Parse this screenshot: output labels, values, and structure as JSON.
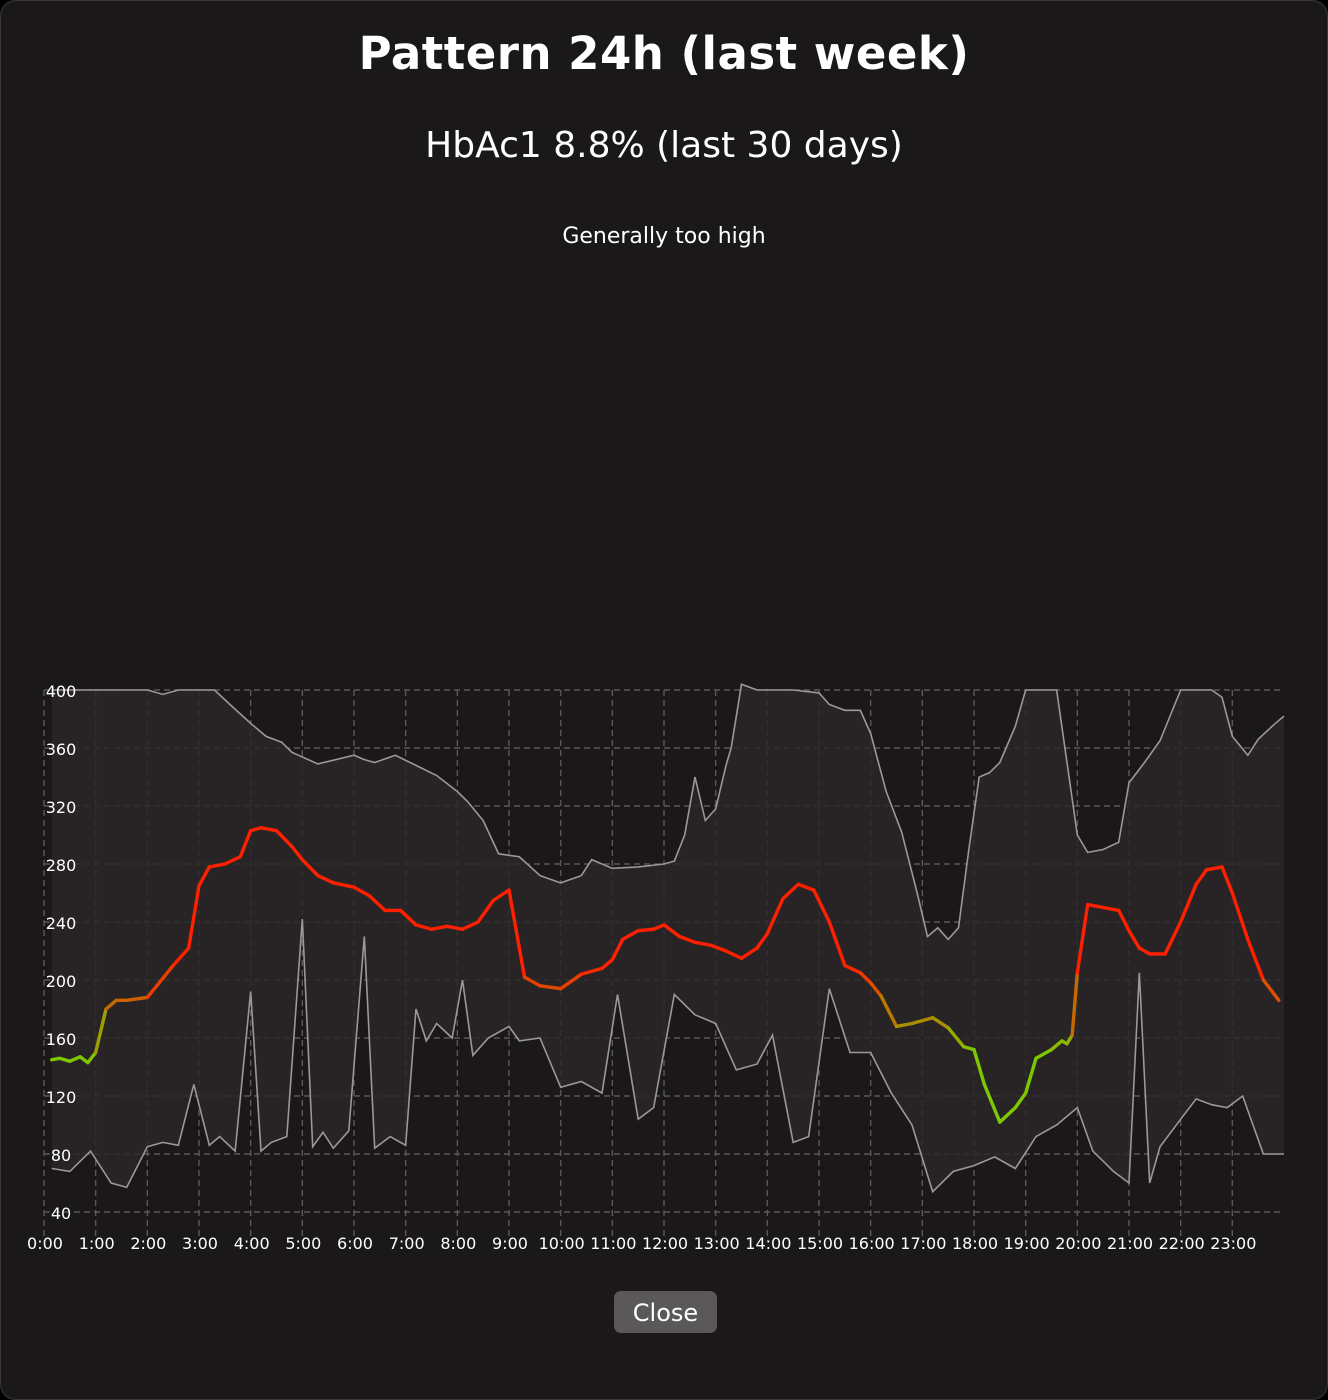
{
  "dialog": {
    "title": "Pattern 24h (last week)",
    "subtitle": "HbAc1 8.8% (last 30 days)",
    "assessment": "Generally too high",
    "close_label": "Close"
  },
  "colors": {
    "background": "#1b1819",
    "band_fill": "#2a2728",
    "band_stroke": "#9a9899",
    "grid": "#5a5758",
    "in_range": "#7ec800",
    "high": "#ff2000"
  },
  "chart_data": {
    "type": "area",
    "title": "",
    "xlabel": "",
    "ylabel": "",
    "xlim": [
      0,
      24
    ],
    "ylim": [
      20,
      400
    ],
    "y_ticks": [
      40,
      80,
      120,
      160,
      200,
      240,
      280,
      320,
      360,
      400
    ],
    "x_tick_labels": [
      "0:00",
      "1:00",
      "2:00",
      "3:00",
      "4:00",
      "5:00",
      "6:00",
      "7:00",
      "8:00",
      "9:00",
      "10:00",
      "11:00",
      "12:00",
      "13:00",
      "14:00",
      "15:00",
      "16:00",
      "17:00",
      "18:00",
      "19:00",
      "20:00",
      "21:00",
      "22:00",
      "23:00"
    ],
    "grid": true,
    "legend": "none",
    "series": [
      {
        "role": "max",
        "x": [
          0.15,
          1.0,
          2.0,
          2.3,
          2.6,
          3.3,
          3.6,
          4.0,
          4.3,
          4.6,
          4.8,
          5.3,
          6.0,
          6.2,
          6.4,
          6.8,
          7.2,
          7.6,
          8.0,
          8.2,
          8.5,
          8.8,
          9.2,
          9.6,
          10.0,
          10.4,
          10.6,
          11.0,
          11.5,
          12.0,
          12.2,
          12.4,
          12.6,
          12.8,
          13.0,
          13.2,
          13.3,
          13.5,
          13.8,
          14.5,
          15.0,
          15.2,
          15.5,
          15.8,
          16.0,
          16.3,
          16.6,
          16.9,
          17.1,
          17.3,
          17.5,
          17.7,
          17.9,
          18.1,
          18.3,
          18.5,
          18.8,
          19.0,
          19.3,
          19.6,
          20.0,
          20.2,
          20.5,
          20.8,
          21.0,
          21.3,
          21.6,
          22.0,
          22.3,
          22.6,
          22.8,
          23.0,
          23.3,
          23.5,
          23.8,
          24.0
        ],
        "y": [
          400,
          400,
          400,
          397,
          400,
          400,
          390,
          377,
          368,
          364,
          357,
          349,
          355,
          352,
          350,
          355,
          348,
          341,
          330,
          323,
          310,
          287,
          285,
          272,
          267,
          272,
          283,
          277,
          278,
          280,
          282,
          300,
          340,
          310,
          318,
          348,
          360,
          404,
          400,
          400,
          398,
          390,
          386,
          386,
          370,
          330,
          302,
          260,
          230,
          236,
          228,
          236,
          290,
          340,
          343,
          350,
          375,
          400,
          400,
          400,
          300,
          288,
          290,
          295,
          336,
          350,
          365,
          400,
          400,
          400,
          395,
          368,
          355,
          366,
          376,
          382
        ]
      },
      {
        "role": "min",
        "x": [
          0.15,
          0.5,
          0.9,
          1.3,
          1.6,
          2.0,
          2.3,
          2.6,
          2.9,
          3.2,
          3.4,
          3.7,
          4.0,
          4.2,
          4.4,
          4.7,
          5.0,
          5.2,
          5.4,
          5.6,
          5.9,
          6.2,
          6.4,
          6.7,
          7.0,
          7.2,
          7.4,
          7.6,
          7.9,
          8.1,
          8.3,
          8.6,
          9.0,
          9.2,
          9.6,
          10.0,
          10.4,
          10.8,
          11.1,
          11.5,
          11.8,
          12.2,
          12.6,
          13.0,
          13.4,
          13.8,
          14.1,
          14.5,
          14.8,
          15.2,
          15.6,
          16.0,
          16.4,
          16.8,
          17.2,
          17.6,
          18.0,
          18.4,
          18.8,
          19.2,
          19.6,
          20.0,
          20.3,
          20.7,
          21.0,
          21.2,
          21.4,
          21.6,
          22.0,
          22.3,
          22.6,
          22.9,
          23.2,
          23.6,
          24.0
        ],
        "y": [
          70,
          68,
          82,
          60,
          57,
          85,
          88,
          86,
          128,
          86,
          92,
          82,
          192,
          82,
          88,
          92,
          242,
          85,
          95,
          84,
          96,
          230,
          84,
          92,
          86,
          180,
          158,
          170,
          160,
          200,
          148,
          160,
          168,
          158,
          160,
          126,
          130,
          122,
          190,
          104,
          112,
          190,
          176,
          170,
          138,
          142,
          162,
          88,
          92,
          194,
          150,
          150,
          122,
          100,
          54,
          68,
          72,
          78,
          70,
          92,
          100,
          112,
          82,
          68,
          60,
          205,
          60,
          85,
          104,
          118,
          114,
          112,
          120,
          80,
          80
        ]
      },
      {
        "role": "average",
        "x": [
          0.15,
          0.3,
          0.5,
          0.7,
          0.85,
          1.0,
          1.2,
          1.4,
          1.6,
          2.0,
          2.5,
          2.8,
          3.0,
          3.2,
          3.5,
          3.8,
          4.0,
          4.2,
          4.5,
          4.8,
          5.0,
          5.3,
          5.6,
          6.0,
          6.3,
          6.6,
          6.9,
          7.2,
          7.5,
          7.8,
          8.1,
          8.4,
          8.7,
          9.0,
          9.3,
          9.6,
          10.0,
          10.4,
          10.8,
          11.0,
          11.2,
          11.5,
          11.8,
          12.0,
          12.3,
          12.6,
          12.9,
          13.2,
          13.5,
          13.8,
          14.0,
          14.3,
          14.6,
          14.9,
          15.2,
          15.5,
          15.8,
          16.0,
          16.2,
          16.5,
          16.8,
          17.0,
          17.2,
          17.5,
          17.8,
          18.0,
          18.2,
          18.5,
          18.8,
          19.0,
          19.2,
          19.5,
          19.7,
          19.8,
          19.9,
          20.0,
          20.2,
          20.5,
          20.8,
          21.0,
          21.2,
          21.4,
          21.7,
          22.0,
          22.3,
          22.5,
          22.8,
          23.0,
          23.3,
          23.6,
          23.9
        ],
        "y": [
          145,
          146,
          144,
          147,
          143,
          150,
          180,
          186,
          186,
          188,
          210,
          222,
          265,
          278,
          280,
          285,
          303,
          305,
          303,
          292,
          283,
          272,
          267,
          264,
          258,
          248,
          248,
          238,
          235,
          237,
          235,
          240,
          255,
          262,
          202,
          196,
          194,
          204,
          208,
          214,
          228,
          234,
          235,
          238,
          230,
          226,
          224,
          220,
          215,
          222,
          232,
          256,
          266,
          262,
          240,
          210,
          205,
          198,
          189,
          168,
          170,
          172,
          174,
          167,
          154,
          152,
          128,
          102,
          112,
          122,
          146,
          152,
          158,
          156,
          162,
          205,
          252,
          250,
          248,
          234,
          222,
          218,
          218,
          240,
          266,
          276,
          278,
          260,
          228,
          200,
          186
        ]
      }
    ]
  }
}
